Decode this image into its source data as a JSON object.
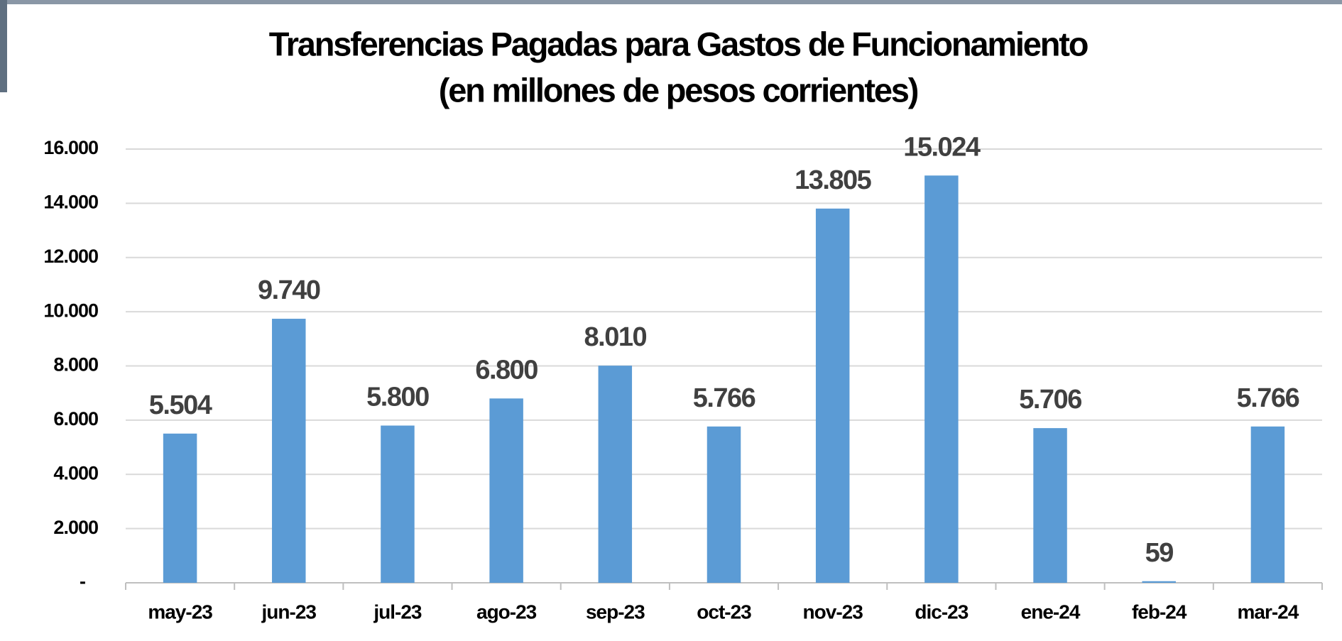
{
  "chart_data": {
    "type": "bar",
    "title": "Transferencias Pagadas para Gastos de Funcionamiento",
    "subtitle": "(en millones de pesos corrientes)",
    "categories": [
      "may-23",
      "jun-23",
      "jul-23",
      "ago-23",
      "sep-23",
      "oct-23",
      "nov-23",
      "dic-23",
      "ene-24",
      "feb-24",
      "mar-24"
    ],
    "values": [
      5504,
      9740,
      5800,
      6800,
      8010,
      5766,
      13805,
      15024,
      5706,
      59,
      5766
    ],
    "value_labels": [
      "5.504",
      "9.740",
      "5.800",
      "6.800",
      "8.010",
      "5.766",
      "13.805",
      "15.024",
      "5.706",
      "59",
      "5.766"
    ],
    "color": "#5b9bd5",
    "ylim": [
      0,
      16000
    ],
    "yticks": [
      {
        "value": 0,
        "label": "-"
      },
      {
        "value": 2000,
        "label": "2.000"
      },
      {
        "value": 4000,
        "label": "4.000"
      },
      {
        "value": 6000,
        "label": "6.000"
      },
      {
        "value": 8000,
        "label": "8.000"
      },
      {
        "value": 10000,
        "label": "10.000"
      },
      {
        "value": 12000,
        "label": "12.000"
      },
      {
        "value": 14000,
        "label": "14.000"
      },
      {
        "value": 16000,
        "label": "16.000"
      }
    ],
    "grid": true
  }
}
